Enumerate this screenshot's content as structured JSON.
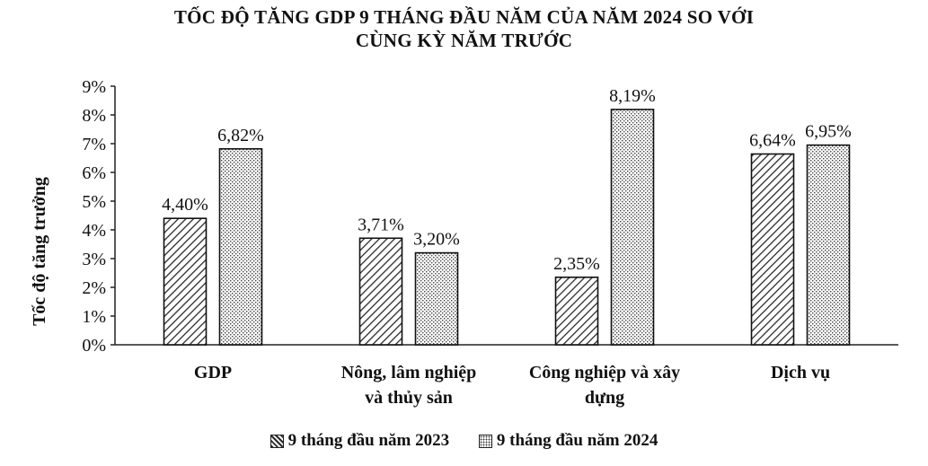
{
  "chart_data": {
    "type": "bar",
    "title_line1": "TỐC ĐỘ TĂNG GDP 9 THÁNG ĐẦU NĂM CỦA NĂM 2024 SO VỚI",
    "title_line2": "CÙNG KỲ NĂM TRƯỚC",
    "ylabel": "Tốc độ tăng trưởng",
    "xlabel": "",
    "ylim": [
      0,
      9
    ],
    "yticks": [
      "0%",
      "1%",
      "2%",
      "3%",
      "4%",
      "5%",
      "6%",
      "7%",
      "8%",
      "9%"
    ],
    "grid": false,
    "legend_position": "bottom",
    "categories": [
      [
        "GDP"
      ],
      [
        "Nông, lâm nghiệp",
        "và thủy sản"
      ],
      [
        "Công nghiệp và xây",
        "dựng"
      ],
      [
        "Dịch vụ"
      ]
    ],
    "series": [
      {
        "name": "9 tháng đầu năm 2023",
        "values": [
          4.4,
          3.71,
          2.35,
          6.64
        ],
        "labels": [
          "4,40%",
          "3,71%",
          "2,35%",
          "6,64%"
        ],
        "pattern": "diagonal-hatch",
        "color": "#2b2b2b"
      },
      {
        "name": "9 tháng đầu năm 2024",
        "values": [
          6.82,
          3.2,
          8.19,
          6.95
        ],
        "labels": [
          "6,82%",
          "3,20%",
          "8,19%",
          "6,95%"
        ],
        "pattern": "dotted",
        "color": "#555555"
      }
    ]
  }
}
